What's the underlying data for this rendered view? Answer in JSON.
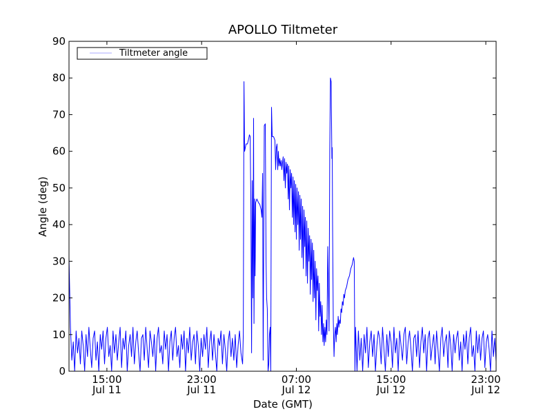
{
  "chart_data": {
    "type": "line",
    "title": "APOLLO Tiltmeter",
    "xlabel": "Date (GMT)",
    "ylabel": "Angle (deg)",
    "x_units": "hours since Jul 11 00:00 GMT",
    "xlim": [
      11.8,
      47.87
    ],
    "ylim": [
      0,
      90
    ],
    "yticks": [
      0,
      10,
      20,
      30,
      40,
      50,
      60,
      70,
      80,
      90
    ],
    "xticks": [
      {
        "value": 15,
        "time": "15:00",
        "date": "Jul 11"
      },
      {
        "value": 23,
        "time": "23:00",
        "date": "Jul 11"
      },
      {
        "value": 31,
        "time": "07:00",
        "date": "Jul 12"
      },
      {
        "value": 39,
        "time": "15:00",
        "date": "Jul 12"
      },
      {
        "value": 47,
        "time": "23:00",
        "date": "Jul 12"
      }
    ],
    "grid": false,
    "legend": {
      "placement": "top-left",
      "entries": [
        "Tiltmeter angle"
      ]
    },
    "colors": {
      "line": "#0000ff",
      "legend_line": "#aaaaff"
    },
    "series": [
      {
        "name": "Tiltmeter angle",
        "noise_blocks": [
          {
            "x0": 11.8,
            "dx": 0.12,
            "y": [
              31,
              12,
              3,
              8,
              0,
              11,
              5,
              9,
              2,
              11,
              7,
              0,
              10,
              4,
              12,
              6,
              1,
              9,
              11,
              3,
              8,
              0,
              10,
              6,
              11,
              2,
              9,
              12,
              4,
              7,
              0,
              11,
              5,
              10,
              3,
              8,
              12,
              1,
              9,
              6,
              11,
              0,
              7,
              10,
              4,
              12,
              2,
              8,
              11,
              5,
              0,
              9,
              10,
              3,
              12,
              6,
              1,
              11,
              8,
              4,
              10,
              0,
              9,
              12,
              5,
              7,
              2,
              11,
              6,
              10,
              0,
              8,
              11,
              3,
              9,
              12,
              4,
              7,
              1,
              10,
              6,
              11,
              0,
              9,
              5,
              12,
              3,
              8,
              10,
              2,
              11,
              7,
              0,
              9,
              4,
              10,
              6,
              12,
              1,
              8,
              11,
              3,
              10,
              5,
              0,
              9,
              7,
              11,
              2,
              10,
              6,
              0,
              8,
              11,
              4,
              9,
              3,
              10,
              1,
              7,
              11,
              5
            ]
          },
          {
            "x0": 36.0,
            "dx": 0.12,
            "y": [
              12,
              0,
              11,
              3,
              9,
              0,
              10,
              5,
              12,
              1,
              8,
              11,
              4,
              10,
              0,
              7,
              11,
              9,
              2,
              12,
              6,
              0,
              10,
              4,
              11,
              8,
              1,
              12,
              5,
              9,
              0,
              11,
              7,
              3,
              10,
              12,
              2,
              8,
              11,
              6,
              0,
              9,
              10,
              4,
              11,
              1,
              8,
              12,
              5,
              10,
              0,
              9,
              11,
              3,
              7,
              10,
              2,
              11,
              6,
              0,
              9,
              12,
              4,
              8,
              10,
              1,
              11,
              7,
              0,
              10,
              5,
              9,
              11,
              3,
              8,
              0,
              10,
              6,
              11,
              2,
              9,
              12,
              4,
              7,
              0,
              11,
              5,
              10,
              3,
              9,
              11,
              1,
              8,
              10,
              6,
              0,
              11,
              4,
              9,
              2
            ]
          }
        ],
        "points": [
          [
            26.46,
            2
          ],
          [
            26.52,
            10
          ],
          [
            26.58,
            79
          ],
          [
            26.63,
            60
          ],
          [
            26.75,
            62
          ],
          [
            26.87,
            62
          ],
          [
            26.98,
            63.5
          ],
          [
            27.04,
            64.5
          ],
          [
            27.1,
            64
          ],
          [
            27.16,
            45
          ],
          [
            27.22,
            5
          ],
          [
            27.27,
            52
          ],
          [
            27.33,
            20
          ],
          [
            27.39,
            69
          ],
          [
            27.42,
            13
          ],
          [
            27.48,
            47
          ],
          [
            27.52,
            26
          ],
          [
            27.56,
            46
          ],
          [
            27.67,
            47
          ],
          [
            27.8,
            46
          ],
          [
            27.91,
            45.5
          ],
          [
            28.03,
            44
          ],
          [
            28.09,
            42
          ],
          [
            28.15,
            54
          ],
          [
            28.2,
            3
          ],
          [
            28.29,
            67
          ],
          [
            28.38,
            67.5
          ],
          [
            28.44,
            30
          ],
          [
            28.49,
            20
          ],
          [
            28.55,
            17
          ],
          [
            28.61,
            0
          ],
          [
            28.67,
            2
          ],
          [
            28.73,
            10
          ],
          [
            28.79,
            12
          ],
          [
            28.84,
            0
          ],
          [
            28.9,
            72
          ],
          [
            28.96,
            64
          ],
          [
            29.08,
            64
          ],
          [
            29.19,
            63
          ],
          [
            29.25,
            55
          ],
          [
            29.31,
            61
          ],
          [
            29.37,
            62
          ],
          [
            29.43,
            55
          ],
          [
            29.48,
            60
          ],
          [
            29.54,
            56
          ],
          [
            29.6,
            58
          ],
          [
            29.66,
            56
          ],
          [
            29.72,
            57.5
          ],
          [
            29.77,
            55
          ],
          [
            29.89,
            58.5
          ],
          [
            29.95,
            52
          ],
          [
            30.01,
            58
          ],
          [
            30.07,
            50
          ],
          [
            30.13,
            57
          ],
          [
            30.19,
            54
          ],
          [
            30.25,
            56.5
          ],
          [
            30.31,
            47
          ],
          [
            30.36,
            56
          ],
          [
            30.42,
            44
          ],
          [
            30.48,
            55
          ],
          [
            30.54,
            50
          ],
          [
            30.6,
            54
          ],
          [
            30.66,
            42
          ],
          [
            30.72,
            53
          ],
          [
            30.77,
            40
          ],
          [
            30.83,
            52
          ],
          [
            30.89,
            38
          ],
          [
            30.95,
            51
          ],
          [
            31.0,
            36
          ],
          [
            31.06,
            50
          ],
          [
            31.12,
            40
          ],
          [
            31.18,
            49
          ],
          [
            31.24,
            33
          ],
          [
            31.3,
            48
          ],
          [
            31.35,
            36
          ],
          [
            31.41,
            47
          ],
          [
            31.47,
            31
          ],
          [
            31.53,
            45
          ],
          [
            31.59,
            28
          ],
          [
            31.65,
            44
          ],
          [
            31.71,
            34
          ],
          [
            31.76,
            42
          ],
          [
            31.82,
            26
          ],
          [
            31.88,
            41
          ],
          [
            31.94,
            24
          ],
          [
            32.0,
            39
          ],
          [
            32.06,
            30
          ],
          [
            32.12,
            37
          ],
          [
            32.18,
            21
          ],
          [
            32.24,
            36
          ],
          [
            32.29,
            25
          ],
          [
            32.35,
            35
          ],
          [
            32.41,
            19
          ],
          [
            32.47,
            33
          ],
          [
            32.53,
            20
          ],
          [
            32.59,
            30
          ],
          [
            32.65,
            14
          ],
          [
            32.71,
            28
          ],
          [
            32.77,
            22
          ],
          [
            32.83,
            26
          ],
          [
            32.88,
            11
          ],
          [
            32.94,
            24
          ],
          [
            33.0,
            15
          ],
          [
            33.06,
            19
          ],
          [
            33.12,
            10
          ],
          [
            33.18,
            18
          ],
          [
            33.24,
            8
          ],
          [
            33.3,
            13
          ],
          [
            33.35,
            7
          ],
          [
            33.41,
            12
          ],
          [
            33.47,
            8
          ],
          [
            33.53,
            14
          ],
          [
            33.59,
            10
          ],
          [
            33.65,
            34
          ],
          [
            33.7,
            25
          ],
          [
            33.76,
            11
          ],
          [
            33.82,
            60
          ],
          [
            33.88,
            80
          ],
          [
            33.94,
            79
          ],
          [
            34.0,
            58
          ],
          [
            34.03,
            61
          ],
          [
            34.06,
            40
          ],
          [
            34.12,
            14
          ],
          [
            34.18,
            4
          ],
          [
            34.24,
            10
          ],
          [
            34.3,
            12
          ],
          [
            34.36,
            8
          ],
          [
            34.41,
            13
          ],
          [
            34.47,
            10
          ],
          [
            34.53,
            15
          ],
          [
            34.59,
            12
          ],
          [
            34.65,
            14
          ],
          [
            34.71,
            13
          ],
          [
            34.77,
            17
          ],
          [
            34.83,
            16
          ],
          [
            34.89,
            19
          ],
          [
            34.95,
            18
          ],
          [
            35.01,
            21
          ],
          [
            35.07,
            20
          ],
          [
            35.13,
            22
          ],
          [
            35.24,
            23
          ],
          [
            35.36,
            25
          ],
          [
            35.48,
            26
          ],
          [
            35.6,
            28
          ],
          [
            35.71,
            29
          ],
          [
            35.83,
            31
          ],
          [
            35.89,
            30
          ],
          [
            35.95,
            0
          ]
        ]
      }
    ]
  }
}
